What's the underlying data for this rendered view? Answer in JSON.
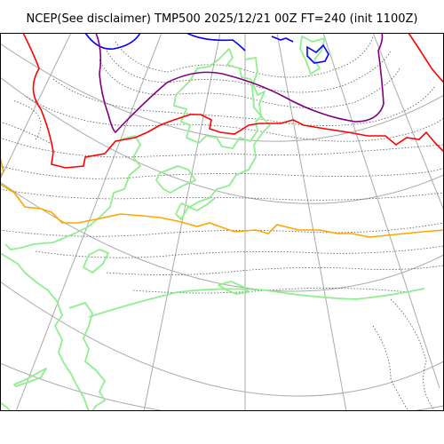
{
  "title": "NCEP(See disclaimer) TMP500 2025/12/21 00Z FT=240 (init 1100Z)",
  "map": {
    "projection": "polar stereographic",
    "variable": "500 hPa temperature",
    "colors": {
      "frame": "#000000",
      "graticule": "#aaaaaa",
      "coastline": "#90ee90",
      "contour_minor": "#555555",
      "contour_blue": "#0000ff",
      "contour_purple": "#800080",
      "contour_red": "#ff0000",
      "contour_orange": "#ffa500"
    }
  }
}
